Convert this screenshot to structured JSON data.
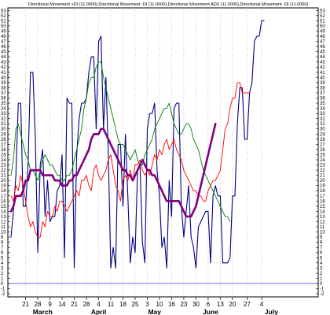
{
  "chart_data": {
    "type": "line",
    "title": "Directional Movement +DI (11.0000),Directional Movement -DI (11.0000),Directional Movement ADX (11.0000),Directional Movement -DI (11.0000)",
    "ylim": [
      -3,
      54
    ],
    "yticks": [
      -2,
      -1,
      0,
      1,
      2,
      3,
      4,
      5,
      6,
      7,
      8,
      9,
      10,
      11,
      12,
      13,
      14,
      15,
      16,
      17,
      18,
      19,
      20,
      21,
      22,
      23,
      24,
      25,
      26,
      27,
      28,
      29,
      30,
      31,
      32,
      33,
      34,
      35,
      36,
      37,
      38,
      39,
      40,
      41,
      42,
      43,
      44,
      45,
      46,
      47,
      48,
      49,
      50,
      51,
      52,
      53
    ],
    "reference_line": 0,
    "xlim": [
      0,
      123
    ],
    "xticks": [
      {
        "t": 6,
        "label": "21"
      },
      {
        "t": 11,
        "label": "28"
      },
      {
        "t": 16,
        "label": "9"
      },
      {
        "t": 21,
        "label": "14"
      },
      {
        "t": 26,
        "label": "21"
      },
      {
        "t": 31,
        "label": "28"
      },
      {
        "t": 36,
        "label": "4"
      },
      {
        "t": 41,
        "label": "11"
      },
      {
        "t": 46,
        "label": "18"
      },
      {
        "t": 51,
        "label": "25"
      },
      {
        "t": 56,
        "label": "3"
      },
      {
        "t": 61,
        "label": "10"
      },
      {
        "t": 66,
        "label": "16"
      },
      {
        "t": 71,
        "label": "23"
      },
      {
        "t": 76,
        "label": "30"
      },
      {
        "t": 81,
        "label": "6"
      },
      {
        "t": 86,
        "label": "13"
      },
      {
        "t": 91,
        "label": "20"
      },
      {
        "t": 97,
        "label": "27"
      },
      {
        "t": 103,
        "label": "4"
      }
    ],
    "months": [
      {
        "t": 13,
        "label": "March"
      },
      {
        "t": 36,
        "label": "April"
      },
      {
        "t": 59,
        "label": "May"
      },
      {
        "t": 82,
        "label": "June"
      },
      {
        "t": 107,
        "label": "July"
      }
    ],
    "series": [
      {
        "color": "#000080",
        "width": 1.1,
        "values": [
          9,
          14,
          21,
          35,
          35,
          15,
          15,
          23,
          41,
          41,
          28,
          6,
          23,
          26,
          13,
          20,
          12,
          13,
          13,
          18,
          19,
          25,
          5,
          36,
          35,
          35,
          3,
          25,
          32,
          35,
          35,
          36,
          41,
          44,
          44,
          30,
          47,
          48,
          30,
          40,
          25,
          3,
          7,
          3,
          27,
          27,
          15,
          29,
          17,
          4,
          9,
          6,
          22,
          23,
          8,
          4,
          30,
          33,
          33,
          35,
          22,
          17,
          7,
          9,
          3,
          20,
          13,
          34,
          35,
          35,
          15,
          9,
          14,
          19,
          9,
          7,
          3,
          11,
          12,
          13,
          14,
          14,
          4,
          17,
          19,
          17,
          17,
          4,
          4,
          4,
          5,
          17,
          17,
          31,
          38,
          38,
          28,
          28,
          37,
          39,
          47,
          48,
          48,
          51,
          51
        ]
      },
      {
        "color": "#ff0000",
        "width": 0.9,
        "values": [
          17,
          16,
          19,
          18,
          21,
          19,
          16,
          13,
          11,
          12,
          10,
          9,
          9,
          12,
          11,
          14,
          13,
          13,
          15,
          14,
          16,
          16,
          15,
          14,
          15,
          16,
          17,
          18,
          17,
          20,
          20,
          21,
          19,
          18,
          22,
          23,
          21,
          20,
          21,
          22,
          24,
          25,
          22,
          19,
          18,
          16,
          20,
          21,
          20,
          22,
          20,
          23,
          23,
          24,
          22,
          21,
          22,
          21,
          23,
          25,
          24,
          26,
          25,
          27,
          28,
          26,
          27,
          28,
          26,
          25,
          24,
          22,
          21,
          20,
          19,
          18,
          18,
          17,
          17,
          16,
          16,
          18,
          19,
          20,
          20,
          21,
          22,
          26,
          30,
          31,
          34,
          36,
          36,
          39,
          39,
          37,
          37,
          37,
          37
        ]
      },
      {
        "color": "#008000",
        "width": 0.9,
        "values": [
          21,
          24,
          30,
          31,
          29,
          27,
          25,
          24,
          22,
          22,
          21,
          20,
          22,
          24,
          25,
          24,
          23,
          23,
          22,
          21,
          21,
          20,
          20,
          21,
          21,
          22,
          24,
          26,
          28,
          30,
          34,
          36,
          39,
          40,
          40,
          42,
          43,
          43,
          40,
          38,
          36,
          34,
          32,
          30,
          28,
          27,
          27,
          26,
          25,
          24,
          25,
          26,
          24,
          23,
          23,
          25,
          26,
          27,
          28,
          30,
          31,
          32,
          33,
          34,
          34,
          35,
          33,
          31,
          30,
          29,
          29,
          30,
          31,
          31,
          30,
          28,
          27,
          26,
          24,
          22,
          21,
          20,
          19,
          18,
          17,
          16,
          15,
          14,
          13,
          13,
          12
        ]
      },
      {
        "color": "#800080",
        "width": 2.6,
        "values": [
          14,
          15,
          17,
          17,
          17,
          18,
          20,
          20,
          22,
          22,
          22,
          22,
          22,
          21,
          21,
          21,
          21,
          21,
          20,
          20,
          20,
          19,
          19,
          19,
          20,
          20,
          21,
          21,
          22,
          23,
          24,
          25,
          26,
          28,
          29,
          29,
          29,
          30,
          30,
          29,
          28,
          27,
          26,
          25,
          24,
          23,
          22,
          22,
          21,
          21,
          20,
          21,
          22,
          23,
          24,
          23,
          22,
          22,
          21,
          21,
          20,
          19,
          18,
          17,
          16,
          16,
          16,
          16,
          16,
          16,
          15,
          14,
          13,
          13,
          13,
          14,
          15,
          17,
          19,
          21,
          23,
          25,
          27,
          29,
          31
        ]
      }
    ]
  }
}
